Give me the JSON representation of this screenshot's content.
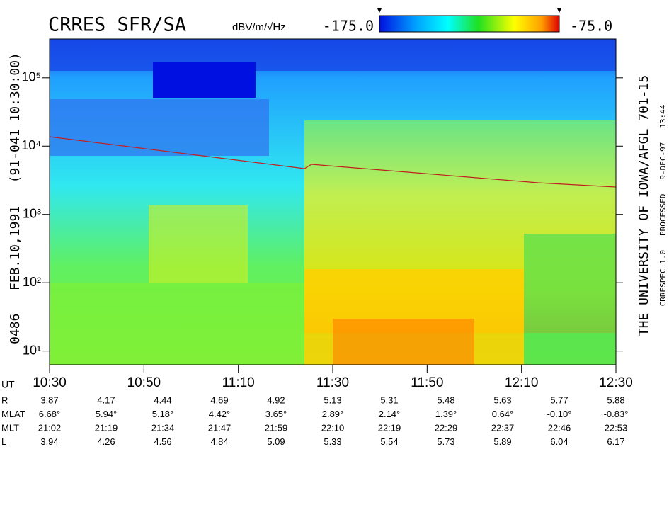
{
  "chart_data": {
    "type": "spectrogram",
    "title": "CRRES SFR/SA",
    "colorbar_label": "dBV/m/√Hz",
    "clim": [
      -175,
      -75
    ],
    "cticks": [
      {
        "value": -175,
        "label": "-175.0"
      },
      {
        "value": -75,
        "label": "-75.0"
      }
    ],
    "left_label": "0486   FEB.10,1991   (91-041 10:30:00)",
    "right_label": "THE UNIVERSITY OF IOWA/AFGL 701-15",
    "right_sublabel": "CRRESPEC 1.0   PROCESSED   9-DEC-97   13:44",
    "log_y": true,
    "ylim": [
      6.3,
      370000
    ],
    "yticks": [
      {
        "value": 10,
        "label": "10¹"
      },
      {
        "value": 100,
        "label": "10²"
      },
      {
        "value": 1000,
        "label": "10³"
      },
      {
        "value": 10000,
        "label": "10⁴"
      },
      {
        "value": 100000,
        "label": "10⁵"
      }
    ],
    "xticks": [
      "10:30",
      "10:50",
      "11:10",
      "11:30",
      "11:50",
      "12:10",
      "12:30"
    ],
    "ephemeris": {
      "label": "UT",
      "rows": [
        {
          "name": "R",
          "values": [
            "3.87",
            "4.17",
            "4.44",
            "4.69",
            "4.92",
            "5.13",
            "5.31",
            "5.48",
            "5.63",
            "5.77",
            "5.88"
          ]
        },
        {
          "name": "MLAT",
          "values": [
            "6.68°",
            "5.94°",
            "5.18°",
            "4.42°",
            "3.65°",
            "2.89°",
            "2.14°",
            "1.39°",
            "0.64°",
            "-0.10°",
            "-0.83°"
          ]
        },
        {
          "name": "MLT",
          "values": [
            "21:02",
            "21:19",
            "21:34",
            "21:47",
            "21:59",
            "22:10",
            "22:19",
            "22:29",
            "22:37",
            "22:46",
            "22:53"
          ]
        },
        {
          "name": "L",
          "values": [
            "3.94",
            "4.26",
            "4.56",
            "4.84",
            "5.09",
            "5.33",
            "5.54",
            "5.73",
            "5.89",
            "6.04",
            "6.17"
          ]
        }
      ]
    }
  }
}
